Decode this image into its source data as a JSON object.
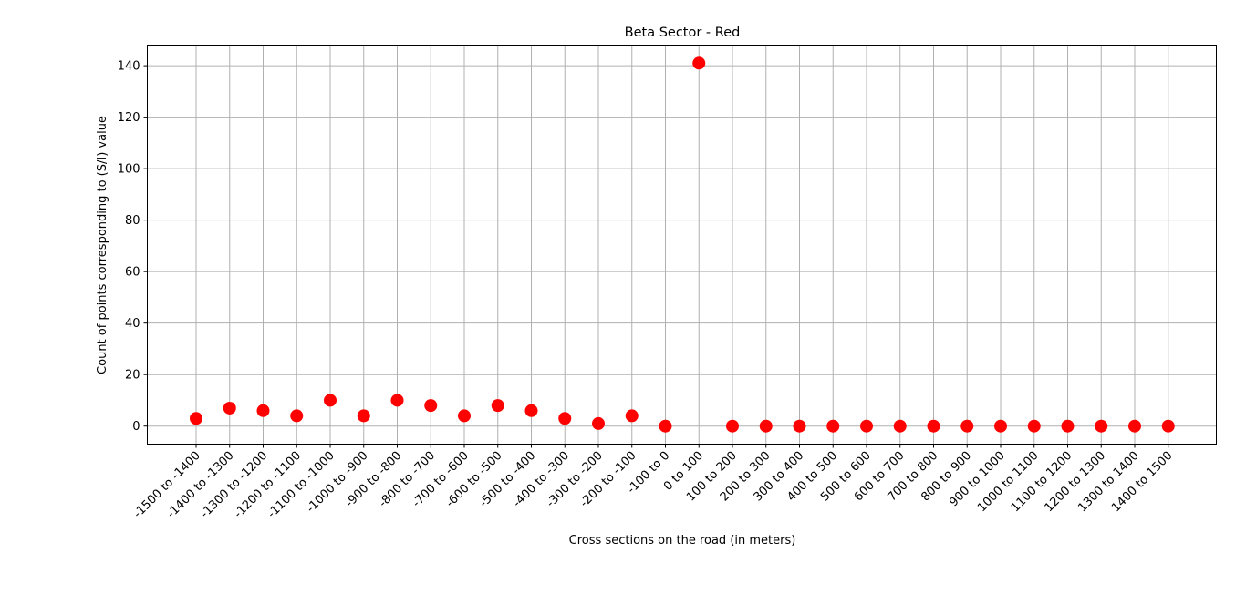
{
  "chart_data": {
    "type": "scatter",
    "title": "Beta Sector - Red",
    "xlabel": "Cross sections on the road (in meters)",
    "ylabel": "Count of points corresponding to (S/I) value",
    "categories": [
      "-1500 to -1400",
      "-1400 to -1300",
      "-1300 to -1200",
      "-1200 to -1100",
      "-1100 to -1000",
      "-1000 to -900",
      "-900 to -800",
      "-800 to -700",
      "-700 to -600",
      "-600 to -500",
      "-500 to -400",
      "-400 to -300",
      "-300 to -200",
      "-200 to -100",
      "-100 to 0",
      "0 to 100",
      "100 to 200",
      "200 to 300",
      "300 to 400",
      "400 to 500",
      "500 to 600",
      "600 to 700",
      "700 to 800",
      "800 to 900",
      "900 to 1000",
      "1000 to 1100",
      "1100 to 1200",
      "1200 to 1300",
      "1300 to 1400",
      "1400 to 1500"
    ],
    "values": [
      3,
      7,
      6,
      4,
      10,
      4,
      10,
      8,
      4,
      8,
      6,
      3,
      1,
      4,
      0,
      141,
      0,
      0,
      0,
      0,
      0,
      0,
      0,
      0,
      0,
      0,
      0,
      0,
      0,
      0
    ],
    "ylim": [
      -7,
      148
    ],
    "yticks": [
      0,
      20,
      40,
      60,
      80,
      100,
      120,
      140
    ],
    "grid": true,
    "marker_color": "#ff0000",
    "legend": "none"
  }
}
